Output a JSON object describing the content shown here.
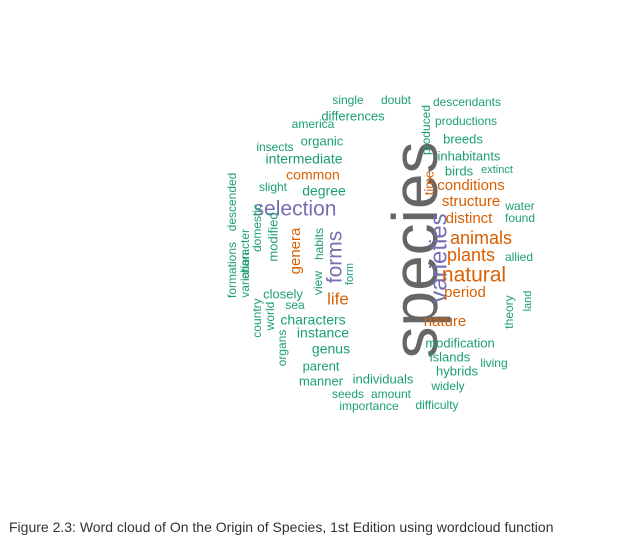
{
  "figure": {
    "caption": "Figure 2.3: Word cloud of On the Origin of Species, 1st Edition using wordcloud function"
  },
  "palette": {
    "teal": "#1b9e77",
    "orange": "#d95f02",
    "purple": "#7570b3",
    "gray": "#666666"
  },
  "wordcloud": {
    "words": [
      {
        "text": "species",
        "color": "gray",
        "rank": 1
      },
      {
        "text": "varieties",
        "color": "purple",
        "rank": 2
      },
      {
        "text": "selection",
        "color": "purple",
        "rank": 2
      },
      {
        "text": "natural",
        "color": "orange",
        "rank": 3
      },
      {
        "text": "forms",
        "color": "purple",
        "rank": 3
      },
      {
        "text": "animals",
        "color": "orange",
        "rank": 4
      },
      {
        "text": "plants",
        "color": "orange",
        "rank": 4
      },
      {
        "text": "life",
        "color": "orange",
        "rank": 5
      },
      {
        "text": "distinct",
        "color": "orange",
        "rank": 5
      },
      {
        "text": "conditions",
        "color": "orange",
        "rank": 5
      },
      {
        "text": "structure",
        "color": "orange",
        "rank": 5
      },
      {
        "text": "nature",
        "color": "orange",
        "rank": 5
      },
      {
        "text": "period",
        "color": "orange",
        "rank": 5
      },
      {
        "text": "genera",
        "color": "orange",
        "rank": 5
      },
      {
        "text": "common",
        "color": "orange",
        "rank": 5
      },
      {
        "text": "time",
        "color": "orange",
        "rank": 6
      },
      {
        "text": "degree",
        "color": "teal",
        "rank": 6
      },
      {
        "text": "intermediate",
        "color": "teal",
        "rank": 6
      },
      {
        "text": "characters",
        "color": "teal",
        "rank": 6
      },
      {
        "text": "instance",
        "color": "teal",
        "rank": 6
      },
      {
        "text": "genus",
        "color": "teal",
        "rank": 6
      },
      {
        "text": "modification",
        "color": "teal",
        "rank": 6
      },
      {
        "text": "islands",
        "color": "teal",
        "rank": 6
      },
      {
        "text": "hybrids",
        "color": "teal",
        "rank": 6
      },
      {
        "text": "parent",
        "color": "teal",
        "rank": 6
      },
      {
        "text": "manner",
        "color": "teal",
        "rank": 6
      },
      {
        "text": "individuals",
        "color": "teal",
        "rank": 6
      },
      {
        "text": "inhabitants",
        "color": "teal",
        "rank": 6
      },
      {
        "text": "breeds",
        "color": "teal",
        "rank": 6
      },
      {
        "text": "birds",
        "color": "teal",
        "rank": 6
      },
      {
        "text": "closely",
        "color": "teal",
        "rank": 6
      },
      {
        "text": "modified",
        "color": "teal",
        "rank": 6
      },
      {
        "text": "habits",
        "color": "teal",
        "rank": 6
      },
      {
        "text": "view",
        "color": "teal",
        "rank": 6
      },
      {
        "text": "differences",
        "color": "teal",
        "rank": 7
      },
      {
        "text": "organic",
        "color": "teal",
        "rank": 7
      },
      {
        "text": "descendants",
        "color": "teal",
        "rank": 7
      },
      {
        "text": "productions",
        "color": "teal",
        "rank": 7
      },
      {
        "text": "slight",
        "color": "teal",
        "rank": 7
      },
      {
        "text": "domestic",
        "color": "teal",
        "rank": 7
      },
      {
        "text": "character",
        "color": "teal",
        "rank": 7
      },
      {
        "text": "variation",
        "color": "teal",
        "rank": 7
      },
      {
        "text": "descended",
        "color": "teal",
        "rank": 7
      },
      {
        "text": "formations",
        "color": "teal",
        "rank": 7
      },
      {
        "text": "country",
        "color": "teal",
        "rank": 7
      },
      {
        "text": "world",
        "color": "teal",
        "rank": 7
      },
      {
        "text": "organs",
        "color": "teal",
        "rank": 7
      },
      {
        "text": "sea",
        "color": "teal",
        "rank": 7
      },
      {
        "text": "form",
        "color": "teal",
        "rank": 7
      },
      {
        "text": "produced",
        "color": "teal",
        "rank": 7
      },
      {
        "text": "allied",
        "color": "teal",
        "rank": 7
      },
      {
        "text": "found",
        "color": "teal",
        "rank": 7
      },
      {
        "text": "water",
        "color": "teal",
        "rank": 7
      },
      {
        "text": "extinct",
        "color": "teal",
        "rank": 7
      },
      {
        "text": "theory",
        "color": "teal",
        "rank": 7
      },
      {
        "text": "land",
        "color": "teal",
        "rank": 7
      },
      {
        "text": "living",
        "color": "teal",
        "rank": 7
      },
      {
        "text": "widely",
        "color": "teal",
        "rank": 7
      },
      {
        "text": "seeds",
        "color": "teal",
        "rank": 7
      },
      {
        "text": "amount",
        "color": "teal",
        "rank": 7
      },
      {
        "text": "importance",
        "color": "teal",
        "rank": 7
      },
      {
        "text": "difficulty",
        "color": "teal",
        "rank": 7
      },
      {
        "text": "single",
        "color": "teal",
        "rank": 7
      },
      {
        "text": "doubt",
        "color": "teal",
        "rank": 7
      },
      {
        "text": "america",
        "color": "teal",
        "rank": 7
      },
      {
        "text": "insects",
        "color": "teal",
        "rank": 7
      }
    ]
  }
}
